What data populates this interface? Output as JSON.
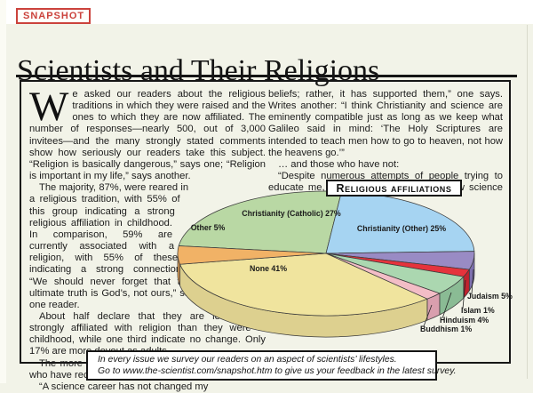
{
  "page": {
    "badge": "SNAPSHOT",
    "title": "Scientists and Their Religions",
    "accent_red": "#cb423c",
    "background": "#f2f3e8",
    "ink": "#161616"
  },
  "article": {
    "left_column": {
      "dropcap": "W",
      "p1": "e asked our readers about the religious traditions in which they were raised and the ones to which they are now affiliated. The number of responses—nearly 500, out of 3,000 invitees—and the many strongly stated comments show how seriously our readers take this subject. “Religion is basically dangerous,” says one; “Religion is important in my life,” says another.",
      "p2": "The majority, 87%, were reared in a religious tradition, with 55% of this group indicating a strong religious affiliation in childhood. In comparison, 59% are currently associated with a religion, with 55% of these indicating a strong connection. “We should never forget that the ultimate truth is God’s, not ours,” says one reader.",
      "p3": "About half declare that they are less strongly affiliated with religion than they were in childhood, while one third indicate no change. Only 17% are more devout as adults.",
      "p4": "The more remarkable comments come from those who have reconciled science and religion …",
      "p5": "“A science career has not changed my"
    },
    "right_column": {
      "p1": "beliefs; rather, it has supported them,” one says. Writes another: “I think Christianity and science are eminently compatible just as long as we keep what Galileo said in mind: ‘The Holy Scriptures are intended to teach men how to go to heaven, not how the heavens go.’”",
      "p2": "… and those who have not:",
      "p3": "“Despite numerous attempts of people trying to educate me, I have never understood how science and religion can coexist.”"
    }
  },
  "chart": {
    "label": "Religious affiliations"
  },
  "chart_data": {
    "type": "pie",
    "title": "Religious affiliations",
    "style": "3d",
    "unit": "%",
    "start_angle_deg": 187,
    "direction": "clockwise",
    "slices": [
      {
        "label": "Christianity (Catholic)",
        "value": 27,
        "color": "#b9d8a4",
        "side_color": "#9cbd88"
      },
      {
        "label": "Christianity (Other)",
        "value": 25,
        "color": "#a6d4f2",
        "side_color": "#82b4d8"
      },
      {
        "label": "Judaism",
        "value": 5,
        "color": "#998bc4",
        "side_color": "#7d6fae"
      },
      {
        "label": "Islam",
        "value": 1,
        "color": "#e5333c",
        "side_color": "#c0232e"
      },
      {
        "label": "Hinduism",
        "value": 4,
        "color": "#abd7b0",
        "side_color": "#8abb94"
      },
      {
        "label": "Buddhism",
        "value": 1,
        "color": "#f3bdc6",
        "side_color": "#d99fae"
      },
      {
        "label": "None",
        "value": 41,
        "color": "#f0e49e",
        "side_color": "#ddd08f"
      },
      {
        "label": "Other",
        "value": 5,
        "color": "#f1b266",
        "side_color": "#d69850"
      }
    ]
  },
  "footer": {
    "line1": "In every issue we survey our readers on an aspect of scientists’ lifestyles.",
    "line2": "Go to www.the-scientist.com/snapshot.htm to give us your feedback in the latest survey."
  }
}
